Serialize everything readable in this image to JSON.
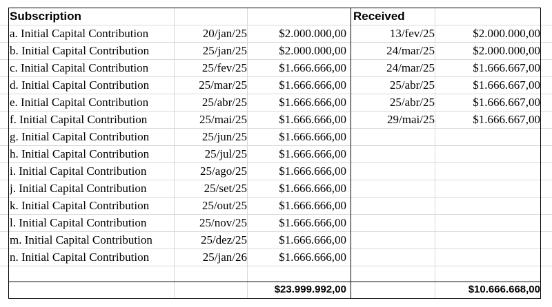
{
  "subscription": {
    "header": "Subscription",
    "rows": [
      {
        "desc": "a. Initial Capital Contribution",
        "date": "20/jan/25",
        "amount": "$2.000.000,00"
      },
      {
        "desc": "b. Initial Capital Contribution",
        "date": "25/jan/25",
        "amount": "$2.000.000,00"
      },
      {
        "desc": "c. Initial Capital Contribution",
        "date": "25/fev/25",
        "amount": "$1.666.666,00"
      },
      {
        "desc": "d. Initial Capital Contribution",
        "date": "25/mar/25",
        "amount": "$1.666.666,00"
      },
      {
        "desc": "e. Initial Capital Contribution",
        "date": "25/abr/25",
        "amount": "$1.666.666,00"
      },
      {
        "desc": "f. Initial Capital Contribution",
        "date": "25/mai/25",
        "amount": "$1.666.666,00"
      },
      {
        "desc": "g. Initial Capital Contribution",
        "date": "25/jun/25",
        "amount": "$1.666.666,00"
      },
      {
        "desc": "h. Initial Capital Contribution",
        "date": "25/jul/25",
        "amount": "$1.666.666,00"
      },
      {
        "desc": "i. Initial Capital Contribution",
        "date": "25/ago/25",
        "amount": "$1.666.666,00"
      },
      {
        "desc": "j. Initial Capital Contribution",
        "date": "25/set/25",
        "amount": "$1.666.666,00"
      },
      {
        "desc": "k. Initial Capital Contribution",
        "date": "25/out/25",
        "amount": "$1.666.666,00"
      },
      {
        "desc": "l. Initial Capital Contribution",
        "date": "25/nov/25",
        "amount": "$1.666.666,00"
      },
      {
        "desc": "m. Initial Capital Contribution",
        "date": "25/dez/25",
        "amount": "$1.666.666,00"
      },
      {
        "desc": "n. Initial Capital Contribution",
        "date": "25/jan/26",
        "amount": "$1.666.666,00"
      }
    ],
    "total": "$23.999.992,00"
  },
  "received": {
    "header": "Received",
    "rows": [
      {
        "date": "13/fev/25",
        "amount": "$2.000.000,00"
      },
      {
        "date": "24/mar/25",
        "amount": "$2.000.000,00"
      },
      {
        "date": "24/mar/25",
        "amount": "$1.666.667,00"
      },
      {
        "date": "25/abr/25",
        "amount": "$1.666.667,00"
      },
      {
        "date": "25/abr/25",
        "amount": "$1.666.667,00"
      },
      {
        "date": "29/mai/25",
        "amount": "$1.666.667,00"
      }
    ],
    "total": "$10.666.668,00"
  }
}
